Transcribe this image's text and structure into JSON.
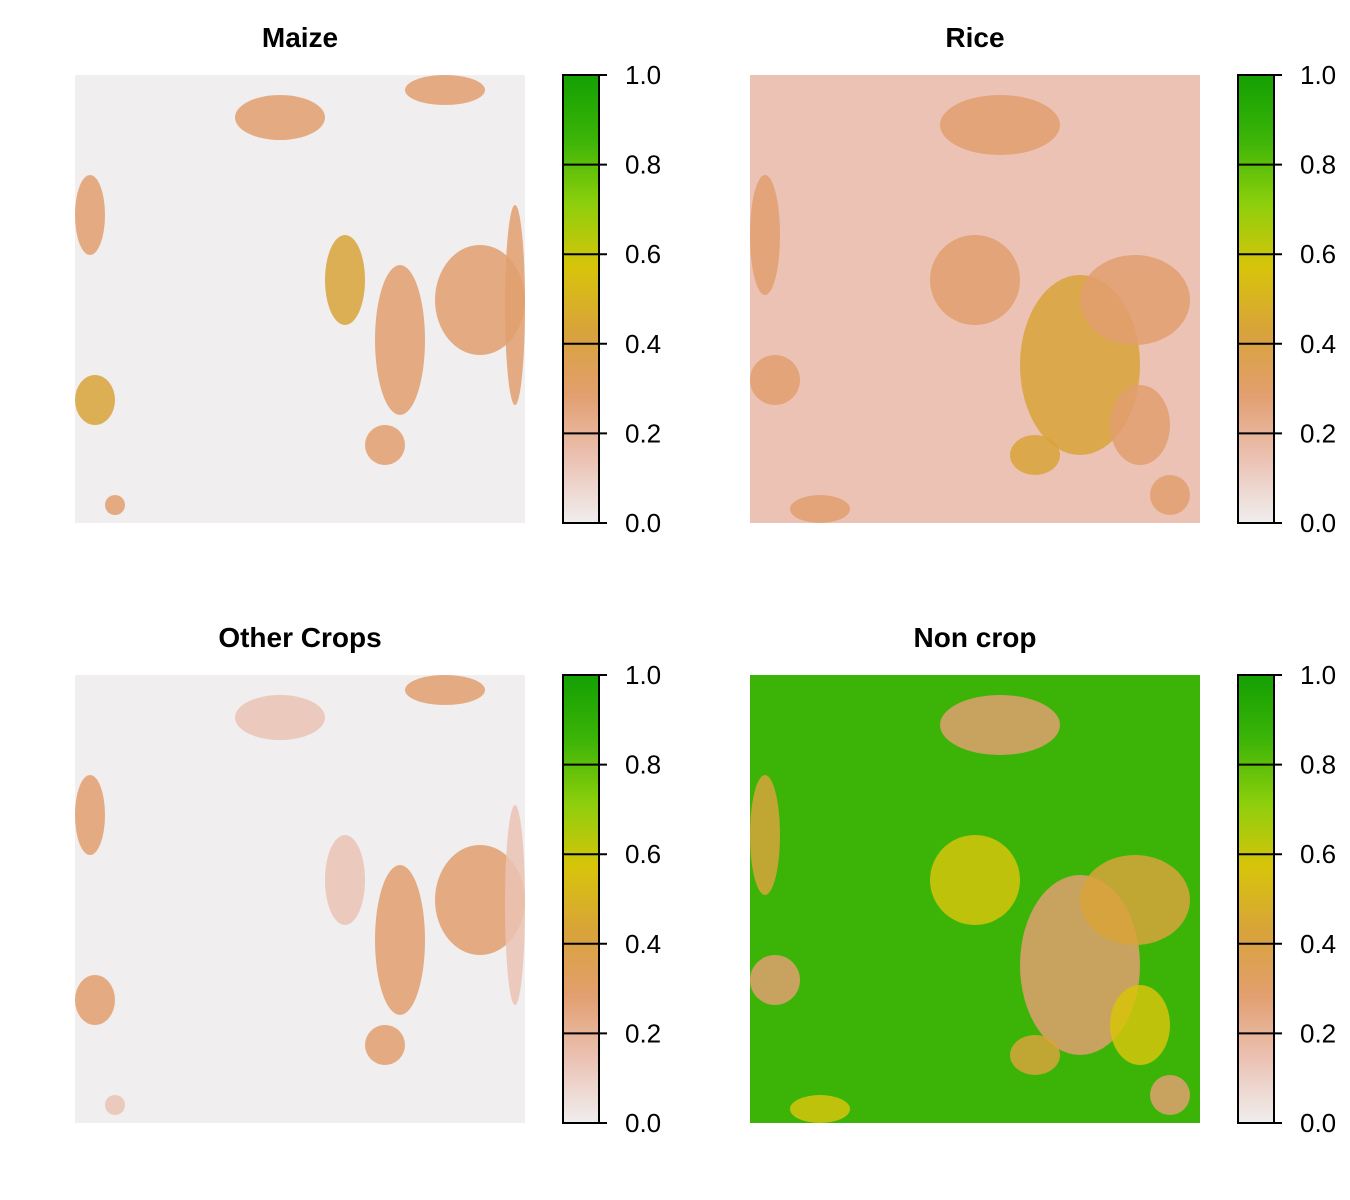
{
  "chart_data": [
    {
      "type": "heatmap",
      "title": "Maize",
      "legend_ticks": [
        "0.0",
        "0.2",
        "0.4",
        "0.6",
        "0.8",
        "1.0"
      ],
      "value_range": [
        0.0,
        1.0
      ],
      "background_level": 0.02,
      "patch_levels": [
        0.22,
        0.3,
        0.35,
        0.45
      ]
    },
    {
      "type": "heatmap",
      "title": "Rice",
      "legend_ticks": [
        "0.0",
        "0.2",
        "0.4",
        "0.6",
        "0.8",
        "1.0"
      ],
      "value_range": [
        0.0,
        1.0
      ],
      "background_level": 0.12,
      "patch_levels": [
        0.22,
        0.3,
        0.35,
        0.45
      ]
    },
    {
      "type": "heatmap",
      "title": "Other Crops",
      "legend_ticks": [
        "0.0",
        "0.2",
        "0.4",
        "0.6",
        "0.8",
        "1.0"
      ],
      "value_range": [
        0.0,
        1.0
      ],
      "background_level": 0.03,
      "patch_levels": [
        0.15,
        0.25,
        0.3
      ]
    },
    {
      "type": "heatmap",
      "title": "Non crop",
      "legend_ticks": [
        "0.0",
        "0.2",
        "0.4",
        "0.6",
        "0.8",
        "1.0"
      ],
      "value_range": [
        0.0,
        1.0
      ],
      "background_level": 0.9,
      "patch_levels": [
        0.25,
        0.45,
        0.55
      ]
    }
  ],
  "colors": {
    "scale": [
      "#f0eeee",
      "#ebc2b4",
      "#e29f6f",
      "#d8a33a",
      "#d7c40a",
      "#8ccf0c",
      "#3bb407",
      "#14a003"
    ]
  }
}
